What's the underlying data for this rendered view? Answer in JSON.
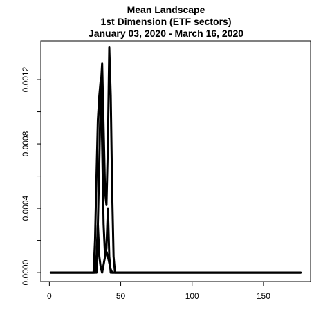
{
  "chart_data": {
    "type": "line",
    "title": "Mean Landscape",
    "subtitle": "1st Dimension (ETF sectors)",
    "date_range": "January 03, 2020 - March 16, 2020",
    "xlabel": "",
    "ylabel": "",
    "xlim": [
      0,
      180
    ],
    "ylim": [
      0,
      0.0014
    ],
    "x_ticks": [
      0,
      50,
      100,
      150
    ],
    "y_ticks": [
      0.0,
      0.0004,
      0.0008,
      0.0012
    ],
    "y_tick_labels": [
      "0.0000",
      "0.0004",
      "0.0008",
      "0.0012"
    ],
    "y_minor_ticks": [
      0.0002,
      0.0006,
      0.001
    ],
    "grid": false,
    "line_color": "#000000",
    "series": [
      {
        "x": [
          1,
          33,
          34,
          35,
          36,
          37,
          38,
          39,
          40,
          41,
          42,
          43,
          44,
          45,
          46,
          176
        ],
        "values": [
          0,
          0,
          0.0003,
          0.0007,
          0.00115,
          0.0013,
          0.0009,
          0.0005,
          0.00042,
          0.0008,
          0.0014,
          0.0011,
          0.0005,
          0.0001,
          0,
          0
        ]
      },
      {
        "x": [
          1,
          31,
          32,
          33,
          34,
          35,
          36,
          37,
          38,
          39,
          40,
          41,
          42,
          43,
          176
        ],
        "values": [
          0,
          0,
          0.0002,
          0.0006,
          0.00095,
          0.0011,
          0.0012,
          0.0008,
          0.0003,
          0.0001,
          0.00015,
          0.0004,
          0.0001,
          0,
          0
        ]
      },
      {
        "x": [
          1,
          32,
          33,
          34,
          35,
          36,
          37,
          38,
          39,
          40,
          41,
          42,
          43,
          44,
          176
        ],
        "values": [
          0,
          0,
          0.0001,
          0.0003,
          0.0001,
          3e-05,
          0,
          5e-05,
          0.0001,
          0.00013,
          0.0001,
          6e-05,
          2e-05,
          0,
          0
        ]
      }
    ]
  }
}
